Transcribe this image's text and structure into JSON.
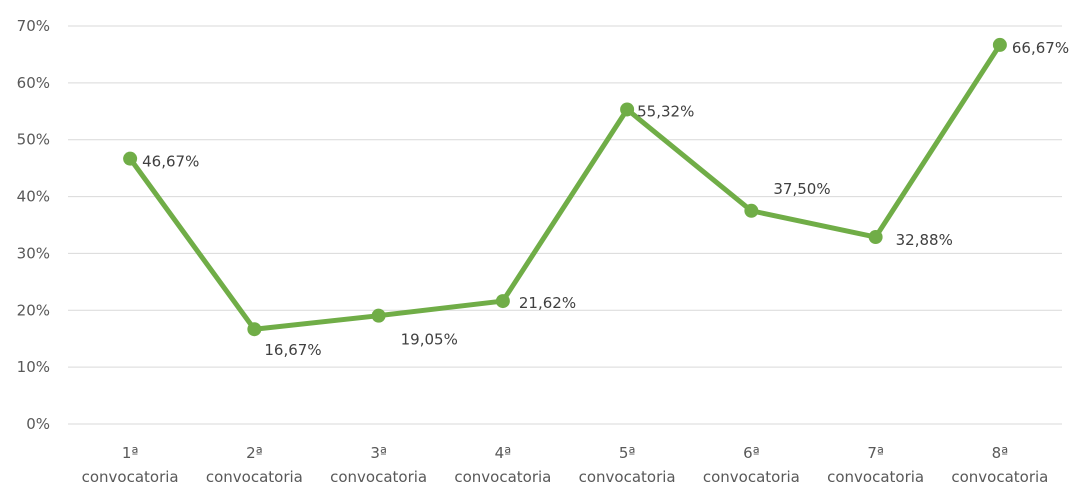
{
  "chart_data": {
    "type": "line",
    "title": "",
    "xlabel": "",
    "ylabel": "",
    "categories": [
      [
        "1ª",
        "convocatoria"
      ],
      [
        "2ª",
        "convocatoria"
      ],
      [
        "3ª",
        "convocatoria"
      ],
      [
        "4ª",
        "convocatoria"
      ],
      [
        "5ª",
        "convocatoria"
      ],
      [
        "6ª",
        "convocatoria"
      ],
      [
        "7ª",
        "convocatoria"
      ],
      [
        "8ª",
        "convocatoria"
      ]
    ],
    "series": [
      {
        "values": [
          46.67,
          16.67,
          19.05,
          21.62,
          55.32,
          37.5,
          32.88,
          66.67
        ],
        "labels": [
          "46,67%",
          "16,67%",
          "19,05%",
          "21,62%",
          "55,32%",
          "37,50%",
          "32,88%",
          "66,67%"
        ],
        "color": "#70AD47"
      }
    ],
    "ylim": [
      0,
      70
    ],
    "yticks": [
      0,
      10,
      20,
      30,
      40,
      50,
      60,
      70
    ],
    "ytick_labels": [
      "0%",
      "10%",
      "20%",
      "30%",
      "40%",
      "50%",
      "60%",
      "70%"
    ],
    "grid": true,
    "legend": "none",
    "colors": {
      "line": "#70AD47",
      "grid": "#D9D9D9",
      "axis_text": "#595959",
      "data_label_text": "#404040"
    }
  }
}
